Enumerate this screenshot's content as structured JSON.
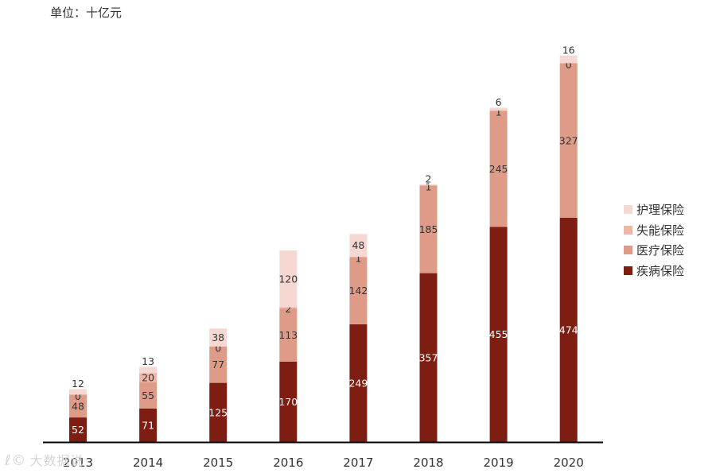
{
  "unit_label": "单位：十亿元",
  "watermark": {
    "logo": "ℓ©",
    "text": "大数据说"
  },
  "chart_data": {
    "type": "bar",
    "stacked": true,
    "categories": [
      "2013",
      "2014",
      "2015",
      "2016",
      "2017",
      "2018",
      "2019",
      "2020"
    ],
    "series": [
      {
        "name": "疾病保险",
        "color": "#7e1e12",
        "label_color": "#ffffff",
        "values": [
          52,
          71,
          125,
          170,
          249,
          357,
          455,
          474
        ]
      },
      {
        "name": "医疗保险",
        "color": "#de9b87",
        "label_color": "#333333",
        "values": [
          48,
          55,
          77,
          113,
          142,
          185,
          245,
          327
        ]
      },
      {
        "name": "失能保险",
        "color": "#edb6a6",
        "label_color": "#333333",
        "values": [
          0,
          20,
          0,
          2,
          1,
          1,
          1,
          0
        ]
      },
      {
        "name": "护理保险",
        "color": "#f6d8d2",
        "label_color": "#333333",
        "values": [
          12,
          13,
          38,
          120,
          48,
          2,
          6,
          16
        ]
      }
    ],
    "legend_order": [
      "护理保险",
      "失能保险",
      "医疗保险",
      "疾病保险"
    ],
    "ylim": [
      0,
      835
    ],
    "xlabel": "",
    "ylabel": "",
    "grid": false,
    "legend_position": "right"
  }
}
